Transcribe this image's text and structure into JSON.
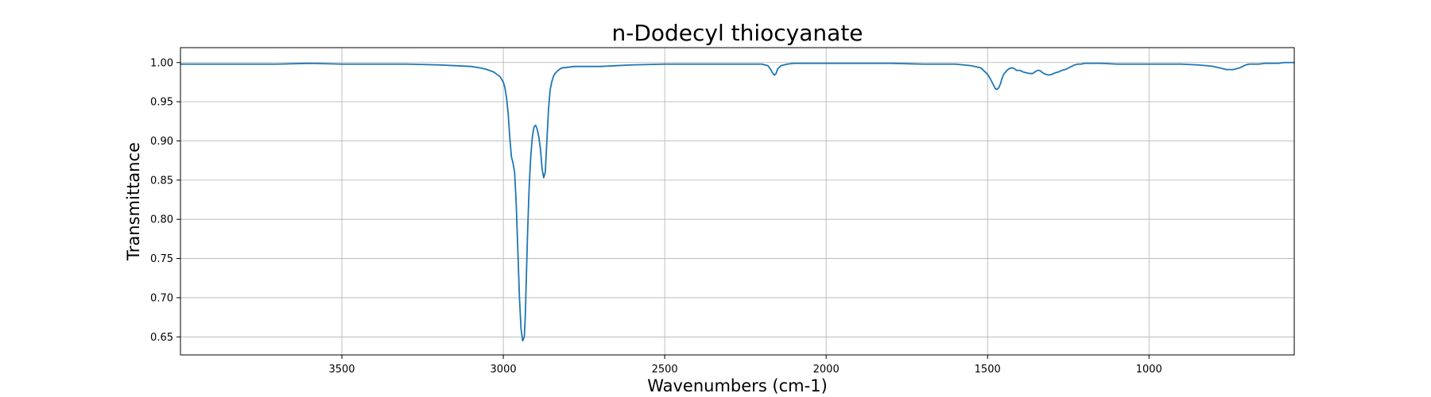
{
  "chart_data": {
    "type": "line",
    "title": "n-Dodecyl thiocyanate",
    "xlabel": "Wavenumbers (cm-1)",
    "ylabel": "Transmittance",
    "xlim": [
      4000,
      550
    ],
    "ylim": [
      0.627,
      1.019
    ],
    "x_reversed": true,
    "grid": true,
    "line_color": "#1f77b4",
    "grid_color": "#b0b0b0",
    "xticks": [
      3500,
      3000,
      2500,
      2000,
      1500,
      1000
    ],
    "xtick_labels": [
      "3500",
      "3000",
      "2500",
      "2000",
      "1500",
      "1000"
    ],
    "yticks": [
      0.65,
      0.7,
      0.75,
      0.8,
      0.85,
      0.9,
      0.95,
      1.0
    ],
    "ytick_labels": [
      "0.65",
      "0.70",
      "0.75",
      "0.80",
      "0.85",
      "0.90",
      "0.95",
      "1.00"
    ],
    "series": [
      {
        "x": [
          4000,
          3900,
          3800,
          3700,
          3600,
          3500,
          3400,
          3300,
          3200,
          3150,
          3100,
          3070,
          3050,
          3030,
          3020,
          3010,
          3000,
          2995,
          2990,
          2985,
          2980,
          2975,
          2970,
          2965,
          2960,
          2955,
          2950,
          2945,
          2940,
          2935,
          2932,
          2929,
          2925,
          2920,
          2915,
          2910,
          2905,
          2900,
          2895,
          2890,
          2885,
          2880,
          2875,
          2870,
          2865,
          2860,
          2855,
          2850,
          2845,
          2840,
          2830,
          2820,
          2800,
          2780,
          2750,
          2700,
          2650,
          2600,
          2500,
          2400,
          2300,
          2250,
          2200,
          2180,
          2170,
          2165,
          2160,
          2155,
          2150,
          2140,
          2120,
          2100,
          2000,
          1900,
          1800,
          1700,
          1600,
          1550,
          1520,
          1500,
          1490,
          1480,
          1475,
          1470,
          1465,
          1460,
          1455,
          1450,
          1440,
          1430,
          1420,
          1410,
          1400,
          1395,
          1390,
          1380,
          1370,
          1360,
          1350,
          1345,
          1340,
          1335,
          1330,
          1320,
          1310,
          1300,
          1290,
          1280,
          1270,
          1260,
          1250,
          1240,
          1230,
          1220,
          1210,
          1200,
          1180,
          1150,
          1100,
          1050,
          1000,
          950,
          900,
          850,
          820,
          800,
          780,
          760,
          740,
          730,
          720,
          710,
          700,
          690,
          680,
          660,
          640,
          620,
          600,
          580,
          560,
          550
        ],
        "y": [
          0.998,
          0.998,
          0.998,
          0.998,
          0.999,
          0.998,
          0.998,
          0.998,
          0.997,
          0.996,
          0.995,
          0.993,
          0.991,
          0.988,
          0.985,
          0.982,
          0.975,
          0.968,
          0.955,
          0.935,
          0.905,
          0.88,
          0.872,
          0.86,
          0.82,
          0.76,
          0.7,
          0.66,
          0.645,
          0.65,
          0.675,
          0.72,
          0.78,
          0.84,
          0.88,
          0.905,
          0.918,
          0.92,
          0.915,
          0.905,
          0.89,
          0.865,
          0.853,
          0.86,
          0.9,
          0.94,
          0.965,
          0.975,
          0.982,
          0.986,
          0.99,
          0.993,
          0.994,
          0.995,
          0.995,
          0.995,
          0.996,
          0.997,
          0.998,
          0.998,
          0.998,
          0.998,
          0.998,
          0.996,
          0.99,
          0.986,
          0.984,
          0.986,
          0.992,
          0.996,
          0.998,
          0.999,
          0.999,
          0.999,
          0.999,
          0.998,
          0.998,
          0.996,
          0.993,
          0.985,
          0.978,
          0.97,
          0.966,
          0.966,
          0.968,
          0.973,
          0.98,
          0.985,
          0.99,
          0.993,
          0.993,
          0.99,
          0.99,
          0.989,
          0.988,
          0.987,
          0.986,
          0.986,
          0.989,
          0.99,
          0.99,
          0.989,
          0.987,
          0.985,
          0.984,
          0.985,
          0.987,
          0.988,
          0.99,
          0.991,
          0.993,
          0.995,
          0.997,
          0.998,
          0.998,
          0.999,
          0.999,
          0.999,
          0.998,
          0.998,
          0.998,
          0.998,
          0.998,
          0.997,
          0.996,
          0.995,
          0.993,
          0.991,
          0.991,
          0.992,
          0.993,
          0.995,
          0.997,
          0.998,
          0.998,
          0.998,
          0.999,
          0.999,
          0.999,
          1.0,
          1.0,
          1.0
        ]
      }
    ]
  }
}
